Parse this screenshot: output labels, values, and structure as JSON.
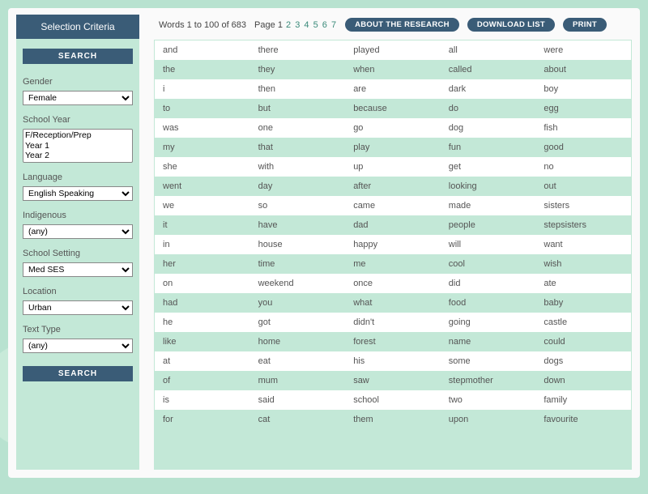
{
  "sidebar": {
    "header": "Selection Criteria",
    "search_label": "SEARCH",
    "fields": {
      "gender": {
        "label": "Gender",
        "value": "Female"
      },
      "school_year": {
        "label": "School Year",
        "options": [
          "F/Reception/Prep",
          "Year 1",
          "Year 2"
        ]
      },
      "language": {
        "label": "Language",
        "value": "English Speaking"
      },
      "indigenous": {
        "label": "Indigenous",
        "value": "(any)"
      },
      "school_setting": {
        "label": "School Setting",
        "value": "Med SES"
      },
      "location": {
        "label": "Location",
        "value": "Urban"
      },
      "text_type": {
        "label": "Text Type",
        "value": "(any)"
      }
    }
  },
  "topbar": {
    "count_text": "Words 1 to 100 of 683",
    "page_label": "Page",
    "current_page": "1",
    "pages": [
      "2",
      "3",
      "4",
      "5",
      "6",
      "7"
    ],
    "buttons": {
      "about": "ABOUT THE RESEARCH",
      "download": "DOWNLOAD LIST",
      "print": "PRINT"
    }
  },
  "words": {
    "columns": [
      [
        "and",
        "the",
        "i",
        "to",
        "was",
        "my",
        "she",
        "went",
        "we",
        "it",
        "in",
        "her",
        "on",
        "had",
        "he",
        "like",
        "at",
        "of",
        "is",
        "for"
      ],
      [
        "there",
        "they",
        "then",
        "but",
        "one",
        "that",
        "with",
        "day",
        "so",
        "have",
        "house",
        "time",
        "weekend",
        "you",
        "got",
        "home",
        "eat",
        "mum",
        "said",
        "cat"
      ],
      [
        "played",
        "when",
        "are",
        "because",
        "go",
        "play",
        "up",
        "after",
        "came",
        "dad",
        "happy",
        "me",
        "once",
        "what",
        "didn't",
        "forest",
        "his",
        "saw",
        "school",
        "them"
      ],
      [
        "all",
        "called",
        "dark",
        "do",
        "dog",
        "fun",
        "get",
        "looking",
        "made",
        "people",
        "will",
        "cool",
        "did",
        "food",
        "going",
        "name",
        "some",
        "stepmother",
        "two",
        "upon"
      ],
      [
        "were",
        "about",
        "boy",
        "egg",
        "fish",
        "good",
        "no",
        "out",
        "sisters",
        "stepsisters",
        "want",
        "wish",
        "ate",
        "baby",
        "castle",
        "could",
        "dogs",
        "down",
        "family",
        "favourite"
      ]
    ]
  },
  "style": {
    "sidebar_bg": "#c3e8d7",
    "header_bg": "#3a5c77",
    "row_alt_bg": "#c3e8d7",
    "text_color": "#555555"
  }
}
